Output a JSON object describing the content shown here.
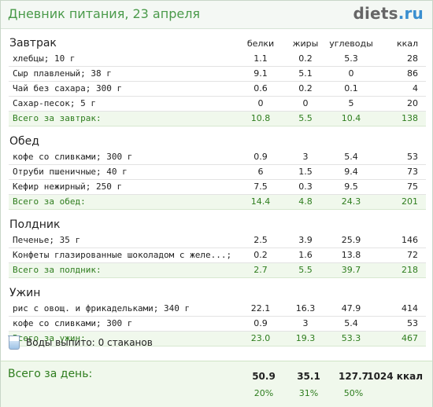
{
  "header": {
    "title": "Дневник питания, 23 апреля",
    "logo_main": "diets",
    "logo_tld": ".ru"
  },
  "columns": {
    "protein": "белки",
    "fat": "жиры",
    "carbs": "углеводы",
    "kcal": "ккал"
  },
  "meals": [
    {
      "title": "Завтрак",
      "items": [
        {
          "name": "хлебцы; 10 г",
          "protein": "1.1",
          "fat": "0.2",
          "carbs": "5.3",
          "kcal": "28"
        },
        {
          "name": "Сыр плавленый; 38 г",
          "protein": "9.1",
          "fat": "5.1",
          "carbs": "0",
          "kcal": "86"
        },
        {
          "name": "Чай без сахара; 300 г",
          "protein": "0.6",
          "fat": "0.2",
          "carbs": "0.1",
          "kcal": "4"
        },
        {
          "name": "Сахар-песок; 5 г",
          "protein": "0",
          "fat": "0",
          "carbs": "5",
          "kcal": "20"
        }
      ],
      "total": {
        "label": "Всего за завтрак:",
        "protein": "10.8",
        "fat": "5.5",
        "carbs": "10.4",
        "kcal": "138"
      }
    },
    {
      "title": "Обед",
      "items": [
        {
          "name": "кофе со сливками; 300 г",
          "protein": "0.9",
          "fat": "3",
          "carbs": "5.4",
          "kcal": "53"
        },
        {
          "name": "Отруби пшеничные; 40 г",
          "protein": "6",
          "fat": "1.5",
          "carbs": "9.4",
          "kcal": "73"
        },
        {
          "name": "Кефир нежирный; 250 г",
          "protein": "7.5",
          "fat": "0.3",
          "carbs": "9.5",
          "kcal": "75"
        }
      ],
      "total": {
        "label": "Всего за обед:",
        "protein": "14.4",
        "fat": "4.8",
        "carbs": "24.3",
        "kcal": "201"
      }
    },
    {
      "title": "Полдник",
      "items": [
        {
          "name": "Печенье; 35 г",
          "protein": "2.5",
          "fat": "3.9",
          "carbs": "25.9",
          "kcal": "146"
        },
        {
          "name": "Конфеты глазированные шоколадом с желе...; 20 г",
          "protein": "0.2",
          "fat": "1.6",
          "carbs": "13.8",
          "kcal": "72"
        }
      ],
      "total": {
        "label": "Всего за полдник:",
        "protein": "2.7",
        "fat": "5.5",
        "carbs": "39.7",
        "kcal": "218"
      }
    },
    {
      "title": "Ужин",
      "items": [
        {
          "name": "рис с овощ. и фрикадельками; 340 г",
          "protein": "22.1",
          "fat": "16.3",
          "carbs": "47.9",
          "kcal": "414"
        },
        {
          "name": "кофе со сливками; 300 г",
          "protein": "0.9",
          "fat": "3",
          "carbs": "5.4",
          "kcal": "53"
        }
      ],
      "total": {
        "label": "Всего за ужин:",
        "protein": "23.0",
        "fat": "19.3",
        "carbs": "53.3",
        "kcal": "467"
      }
    }
  ],
  "water": {
    "label": "Воды выпито:",
    "value": "0 стаканов",
    "icon": "water-glass-icon"
  },
  "day_total": {
    "label": "Всего за день:",
    "protein": "50.9",
    "fat": "35.1",
    "carbs": "127.7",
    "kcal": "1024 ккал",
    "protein_pct": "20%",
    "fat_pct": "31%",
    "carbs_pct": "50%"
  }
}
